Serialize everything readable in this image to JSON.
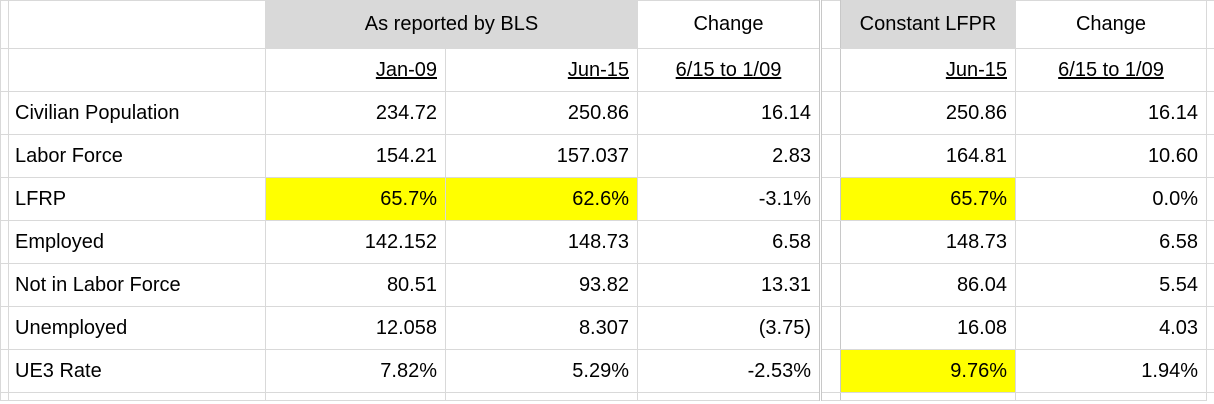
{
  "header": {
    "group_title": "As reported by BLS",
    "change_1": "Change",
    "constant_title": "Constant LFPR",
    "change_2": "Change"
  },
  "subheader": [
    "Jan-09",
    "Jun-15",
    "6/15 to 1/09",
    "Jun-15",
    "6/15 to 1/09"
  ],
  "rows": [
    {
      "label": "Civilian Population",
      "cells": [
        "234.72",
        "250.86",
        "16.14",
        "250.86",
        "16.14"
      ]
    },
    {
      "label": "Labor Force",
      "cells": [
        "154.21",
        "157.037",
        "2.83",
        "164.81",
        "10.60"
      ]
    },
    {
      "label": "LFRP",
      "cells": [
        "65.7%",
        "62.6%",
        "-3.1%",
        "65.7%",
        "0.0%"
      ]
    },
    {
      "label": "Employed",
      "cells": [
        "142.152",
        "148.73",
        "6.58",
        "148.73",
        "6.58"
      ]
    },
    {
      "label": "Not in Labor Force",
      "cells": [
        "80.51",
        "93.82",
        "13.31",
        "86.04",
        "5.54"
      ]
    },
    {
      "label": "Unemployed",
      "cells": [
        "12.058",
        "8.307",
        "(3.75)",
        "16.08",
        "4.03"
      ]
    },
    {
      "label": "UE3 Rate",
      "cells": [
        "7.82%",
        "5.29%",
        "-2.53%",
        "9.76%",
        "1.94%"
      ]
    }
  ]
}
